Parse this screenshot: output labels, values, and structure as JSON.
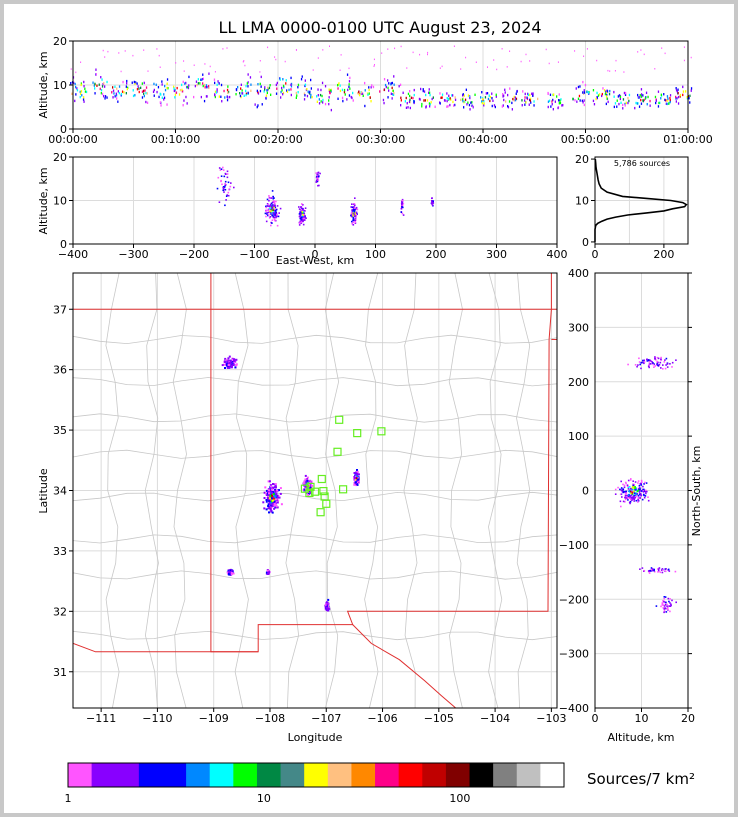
{
  "title": "LL LMA 0000-0100 UTC August 23, 2024",
  "time_height": {
    "ylabel": "Altitude, km",
    "y_ticks": [
      "0",
      "10",
      "20"
    ],
    "x_ticks": [
      "00:00:00",
      "00:10:00",
      "00:20:00",
      "00:30:00",
      "00:40:00",
      "00:50:00",
      "01:00:00"
    ]
  },
  "ew_height": {
    "ylabel": "Altitude, km",
    "xlabel": "East-West, km",
    "y_ticks": [
      "0",
      "10",
      "20"
    ],
    "x_ticks": [
      "−400",
      "−300",
      "−200",
      "−100",
      "0",
      "100",
      "200",
      "300",
      "400"
    ]
  },
  "histogram": {
    "label": "5,786 sources",
    "y_ticks": [
      "0",
      "10",
      "20"
    ],
    "x_ticks": [
      "0",
      "200"
    ]
  },
  "plan_view": {
    "ylabel": "Latitude",
    "xlabel": "Longitude",
    "y_ticks": [
      "31",
      "32",
      "33",
      "34",
      "35",
      "36",
      "37"
    ],
    "x_ticks": [
      "−111",
      "−110",
      "−109",
      "−108",
      "−107",
      "−106",
      "−105",
      "−104",
      "−103"
    ]
  },
  "ns_height": {
    "ylabel": "North-South, km",
    "xlabel": "Altitude, km",
    "y_ticks": [
      "−400",
      "−300",
      "−200",
      "−100",
      "0",
      "100",
      "200",
      "300",
      "400"
    ],
    "x_ticks": [
      "0",
      "10",
      "20"
    ]
  },
  "colorbar": {
    "label": "Sources/7 km²",
    "ticks": [
      "1",
      "10",
      "100"
    ],
    "colors": [
      "#ff55ff",
      "#8800ff",
      "#8800ff",
      "#0000ff",
      "#0000ff",
      "#0088ff",
      "#00ffff",
      "#00ff00",
      "#008844",
      "#448888",
      "#ffff00",
      "#ffc080",
      "#ff8800",
      "#ff0088",
      "#ff0000",
      "#c00000",
      "#800000",
      "#000000",
      "#808080",
      "#c0c0c0",
      "#ffffff"
    ]
  },
  "chart_data": [
    {
      "type": "scatter",
      "panel": "time-height",
      "xlabel": "",
      "ylabel": "Altitude, km",
      "xlim": [
        "00:00:00",
        "01:00:00"
      ],
      "ylim": [
        0,
        20
      ],
      "grid": true,
      "source_columns_min": [
        0.5,
        2.5,
        4.5,
        6.5,
        8.5,
        10.5,
        12.5,
        14.5,
        16.5,
        18.5,
        20.5,
        22.5,
        24.5,
        26.5,
        28.5,
        30.5,
        32.5,
        34.5,
        36.5,
        38.5,
        40.5,
        42.5,
        44.5,
        47,
        49.5,
        51.5,
        53.5,
        55.5,
        57.5,
        59.5
      ],
      "source_altitude_km": [
        9,
        10,
        9,
        9,
        9,
        9,
        10,
        9,
        9,
        9,
        10,
        9,
        8,
        9,
        8,
        9,
        7,
        7,
        7,
        7,
        7,
        7,
        7,
        7,
        8,
        8,
        7,
        7,
        7,
        8
      ],
      "source_spread_km": [
        3,
        3,
        3,
        3,
        3,
        3,
        3,
        3,
        3,
        3,
        3,
        3,
        3,
        3,
        3,
        3,
        3,
        3,
        2,
        2,
        2,
        2,
        2,
        2,
        2,
        2,
        2,
        2,
        2,
        2
      ]
    },
    {
      "type": "scatter",
      "panel": "east-west vs altitude",
      "xlabel": "East-West, km",
      "ylabel": "Altitude, km",
      "xlim": [
        -400,
        400
      ],
      "ylim": [
        0,
        20
      ],
      "grid": true,
      "clusters": [
        {
          "x": -150,
          "y": 14,
          "dx": 12,
          "dy": 4,
          "weight": 0.3
        },
        {
          "x": -72,
          "y": 8,
          "dx": 10,
          "dy": 3,
          "weight": 0.9
        },
        {
          "x": -22,
          "y": 7,
          "dx": 5,
          "dy": 2,
          "weight": 0.7
        },
        {
          "x": 3,
          "y": 15,
          "dx": 3,
          "dy": 2,
          "weight": 0.2
        },
        {
          "x": 63,
          "y": 7,
          "dx": 5,
          "dy": 2.5,
          "weight": 0.6
        },
        {
          "x": 143,
          "y": 9,
          "dx": 2,
          "dy": 2,
          "weight": 0.15
        },
        {
          "x": 193,
          "y": 10,
          "dx": 2,
          "dy": 1,
          "weight": 0.1
        }
      ]
    },
    {
      "type": "line",
      "panel": "altitude histogram",
      "xlabel": "",
      "ylabel": "",
      "xlim": [
        0,
        270
      ],
      "ylim": [
        0,
        20
      ],
      "grid": true,
      "altitude_km": [
        0,
        1,
        2,
        3,
        4,
        4.5,
        5,
        5.5,
        6,
        6.5,
        7,
        7.5,
        8,
        8.5,
        9,
        9.5,
        10,
        10.5,
        11,
        12,
        13,
        14,
        15,
        16,
        17,
        18,
        19,
        20
      ],
      "count": [
        0,
        0,
        0,
        0,
        2,
        8,
        20,
        35,
        60,
        95,
        150,
        200,
        225,
        260,
        265,
        255,
        220,
        150,
        80,
        35,
        18,
        12,
        9,
        7,
        5,
        3,
        2,
        1
      ],
      "annotation": "5,786 sources"
    },
    {
      "type": "scatter",
      "panel": "plan view",
      "xlabel": "Longitude",
      "ylabel": "Latitude",
      "xlim": [
        -111.5,
        -102.9
      ],
      "ylim": [
        30.4,
        37.6
      ],
      "grid": true,
      "clusters": [
        {
          "lon": -108.72,
          "lat": 36.12,
          "dlon": 0.12,
          "dlat": 0.08,
          "weight": 0.4
        },
        {
          "lon": -107.97,
          "lat": 33.9,
          "dlon": 0.12,
          "dlat": 0.22,
          "weight": 1.0
        },
        {
          "lon": -107.35,
          "lat": 34.1,
          "dlon": 0.06,
          "dlat": 0.12,
          "weight": 0.7
        },
        {
          "lon": -106.48,
          "lat": 34.22,
          "dlon": 0.04,
          "dlat": 0.1,
          "weight": 0.5
        },
        {
          "lon": -108.72,
          "lat": 32.66,
          "dlon": 0.05,
          "dlat": 0.04,
          "weight": 0.25
        },
        {
          "lon": -107.0,
          "lat": 32.1,
          "dlon": 0.03,
          "dlat": 0.08,
          "weight": 0.2
        },
        {
          "lon": -108.05,
          "lat": 32.66,
          "dlon": 0.03,
          "dlat": 0.03,
          "weight": 0.15
        }
      ],
      "stations_lonlat": [
        [
          -106.77,
          35.17
        ],
        [
          -106.45,
          34.95
        ],
        [
          -106.02,
          34.98
        ],
        [
          -106.8,
          34.64
        ],
        [
          -107.08,
          34.19
        ],
        [
          -106.7,
          34.02
        ],
        [
          -107.38,
          34.03
        ],
        [
          -107.2,
          33.98
        ],
        [
          -107.05,
          33.99
        ],
        [
          -107.3,
          33.96
        ],
        [
          -107.03,
          33.9
        ],
        [
          -107.0,
          33.78
        ],
        [
          -107.1,
          33.64
        ],
        [
          -107.28,
          34.06
        ]
      ]
    },
    {
      "type": "scatter",
      "panel": "north-south vs altitude",
      "xlabel": "Altitude, km",
      "ylabel": "North-South, km",
      "xlim": [
        0,
        20
      ],
      "ylim": [
        -400,
        400
      ],
      "grid": true,
      "clusters": [
        {
          "x": 8,
          "y": 0,
          "dx": 3,
          "dy": 22,
          "weight": 1.0
        },
        {
          "x": 13,
          "y": 237,
          "dx": 4,
          "dy": 10,
          "weight": 0.35
        },
        {
          "x": 13,
          "y": -145,
          "dx": 4,
          "dy": 5,
          "weight": 0.2
        },
        {
          "x": 15,
          "y": -212,
          "dx": 1.5,
          "dy": 18,
          "weight": 0.2
        }
      ]
    }
  ]
}
